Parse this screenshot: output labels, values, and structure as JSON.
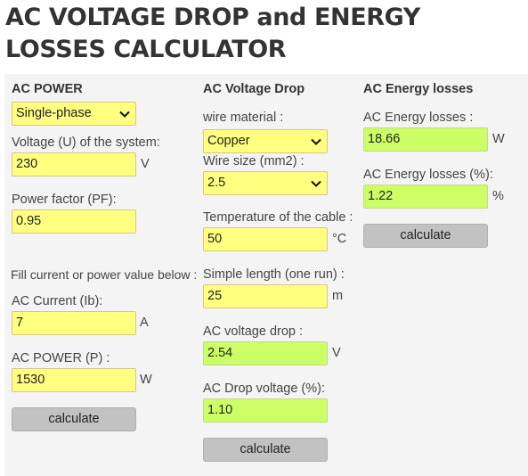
{
  "page": {
    "title": "AC VOLTAGE DROP and ENERGY LOSSES CALCULATOR"
  },
  "ac_power": {
    "heading": "AC POWER",
    "phase_select": "Single-phase",
    "voltage_label": "Voltage (U) of the system:",
    "voltage_value": "230",
    "voltage_unit": "V",
    "pf_label": "Power factor (PF):",
    "pf_value": "0.95",
    "note": "Fill current or power value below :",
    "current_label": "AC Current (Ib):",
    "current_value": "7",
    "current_unit": "A",
    "power_label": "AC POWER (P) :",
    "power_value": "1530",
    "power_unit": "W",
    "calculate": "calculate"
  },
  "voltage_drop": {
    "heading": "AC Voltage Drop",
    "material_label": "wire material :",
    "material_value": "Copper",
    "size_label": "Wire size (mm2) :",
    "size_value": "2.5",
    "temp_label": "Temperature of the cable :",
    "temp_value": "50",
    "temp_unit": "°C",
    "length_label": "Simple length (one run) :",
    "length_value": "25",
    "length_unit": "m",
    "drop_label": "AC voltage drop :",
    "drop_value": "2.54",
    "drop_unit": "V",
    "drop_pct_label": "AC Drop voltage (%):",
    "drop_pct_value": "1.10",
    "calculate": "calculate"
  },
  "energy_losses": {
    "heading": "AC Energy losses",
    "losses_label": "AC Energy losses :",
    "losses_value": "18.66",
    "losses_unit": "W",
    "losses_pct_label": "AC Energy losses (%):",
    "losses_pct_value": "1.22",
    "losses_pct_unit": "%",
    "calculate": "calculate"
  },
  "colors": {
    "input_bg": "#ffff80",
    "result_bg": "#ccff66",
    "button_bg": "#c2c2c2",
    "panel_bg": "#f4f4f4"
  },
  "icons": {
    "select_arrow": "chevron-down-icon"
  }
}
